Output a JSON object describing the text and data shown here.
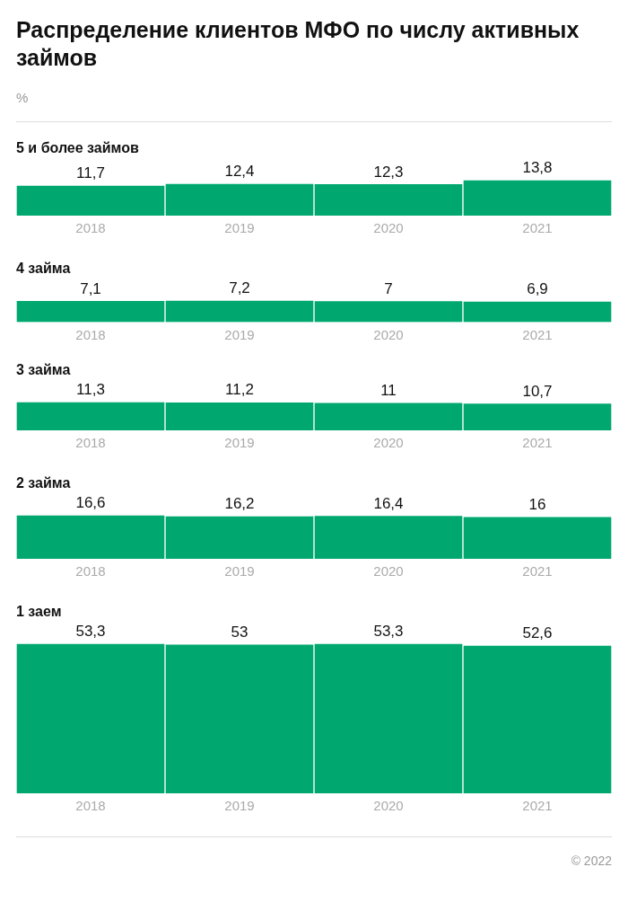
{
  "chart_data": [
    {
      "type": "other",
      "title": "Распределение клиентов МФО по числу активных займов",
      "subtitle": "%"
    },
    {
      "type": "bar",
      "title": "5 и более займов",
      "categories": [
        "2018",
        "2019",
        "2020",
        "2021"
      ],
      "values": [
        11.7,
        12.4,
        12.3,
        13.8
      ],
      "value_labels": [
        "11,7",
        "12,4",
        "12,3",
        "13,8"
      ],
      "color": "#00a870",
      "grid": false,
      "legend": false,
      "tick_labels": "x"
    },
    {
      "type": "bar",
      "title": "4 займа",
      "categories": [
        "2018",
        "2019",
        "2020",
        "2021"
      ],
      "values": [
        7.1,
        7.2,
        7,
        6.9
      ],
      "value_labels": [
        "7,1",
        "7,2",
        "7",
        "6,9"
      ],
      "color": "#00a870",
      "grid": false,
      "legend": false,
      "tick_labels": "x"
    },
    {
      "type": "bar",
      "title": "3 займа",
      "categories": [
        "2018",
        "2019",
        "2020",
        "2021"
      ],
      "values": [
        11.3,
        11.2,
        11,
        10.7
      ],
      "value_labels": [
        "11,3",
        "11,2",
        "11",
        "10,7"
      ],
      "color": "#00a870",
      "grid": false,
      "legend": false,
      "tick_labels": "x"
    },
    {
      "type": "bar",
      "title": "2 займа",
      "categories": [
        "2018",
        "2019",
        "2020",
        "2021"
      ],
      "values": [
        16.6,
        16.2,
        16.4,
        16
      ],
      "value_labels": [
        "16,6",
        "16,2",
        "16,4",
        "16"
      ],
      "color": "#00a870",
      "grid": false,
      "legend": false,
      "tick_labels": "x"
    },
    {
      "type": "bar",
      "title": "1 заем",
      "categories": [
        "2018",
        "2019",
        "2020",
        "2021"
      ],
      "values": [
        53.3,
        53,
        53.3,
        52.6
      ],
      "value_labels": [
        "53,3",
        "53",
        "53,3",
        "52,6"
      ],
      "color": "#00a870",
      "grid": false,
      "legend": false,
      "tick_labels": "x"
    },
    {
      "type": "other",
      "annotations": [
        "© 2022"
      ]
    }
  ]
}
